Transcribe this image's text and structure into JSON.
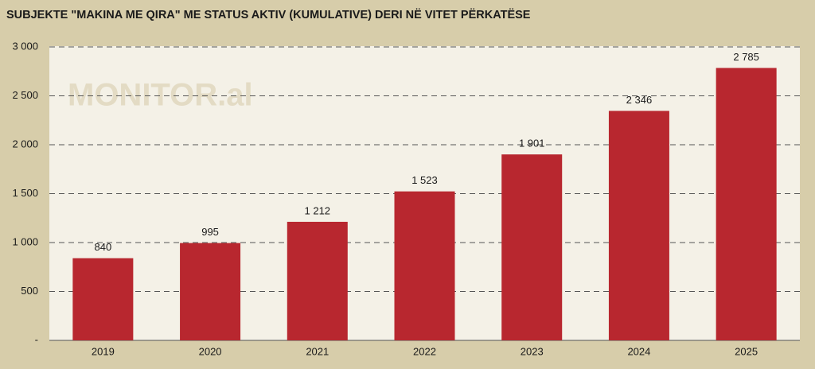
{
  "chart_data": {
    "type": "bar",
    "title": "SUBJEKTE \"MAKINA ME QIRA\" ME STATUS AKTIV (KUMULATIVE) DERI NË VITET PËRKATËSE",
    "watermark": "MONITOR.al",
    "categories": [
      "2019",
      "2020",
      "2021",
      "2022",
      "2023",
      "2024",
      "2025"
    ],
    "values": [
      840,
      995,
      1212,
      1523,
      1901,
      2346,
      2785
    ],
    "value_labels": [
      "840",
      "995",
      "1 212",
      "1 523",
      "1 901",
      "2 346",
      "2 785"
    ],
    "color": "#b8272f",
    "ylim": [
      0,
      3000
    ],
    "yticks": [
      {
        "value": 0,
        "label": "-"
      },
      500,
      {
        "value": 1000,
        "label": "1 000"
      },
      {
        "value": 1500,
        "label": "1 500"
      },
      {
        "value": 2000,
        "label": "2 000"
      },
      {
        "value": 2500,
        "label": "2 500"
      },
      {
        "value": 3000,
        "label": "3 000"
      }
    ],
    "grid": true
  }
}
